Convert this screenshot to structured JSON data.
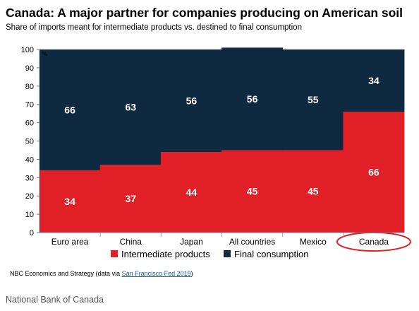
{
  "chart_data": {
    "type": "bar",
    "stacked": true,
    "title": "Canada: A major partner for companies producing on American soil",
    "subtitle": "Share of imports meant for intermediate products vs. destined to final consumption",
    "unit_label": "%",
    "categories": [
      "Euro area",
      "China",
      "Japan",
      "All countries",
      "Mexico",
      "Canada"
    ],
    "series": [
      {
        "name": "Intermediate products",
        "color": "#e11f26",
        "values": [
          34,
          37,
          44,
          45,
          45,
          66
        ]
      },
      {
        "name": "Final consumption",
        "color": "#0f2940",
        "values": [
          66,
          63,
          56,
          56,
          55,
          34
        ]
      }
    ],
    "ylim": [
      0,
      100
    ],
    "yticks": [
      0,
      10,
      20,
      30,
      40,
      50,
      60,
      70,
      80,
      90,
      100
    ],
    "grid": false,
    "legend_position": "bottom",
    "highlighted_category": "Canada",
    "highlight_color": "#e11f26",
    "plot_background": "#dce6f2"
  },
  "source": {
    "prefix": "NBC Economics and Strategy (data via ",
    "link_text": "San Francisco Fed 2019",
    "suffix": ")"
  },
  "caption": "National Bank of Canada"
}
